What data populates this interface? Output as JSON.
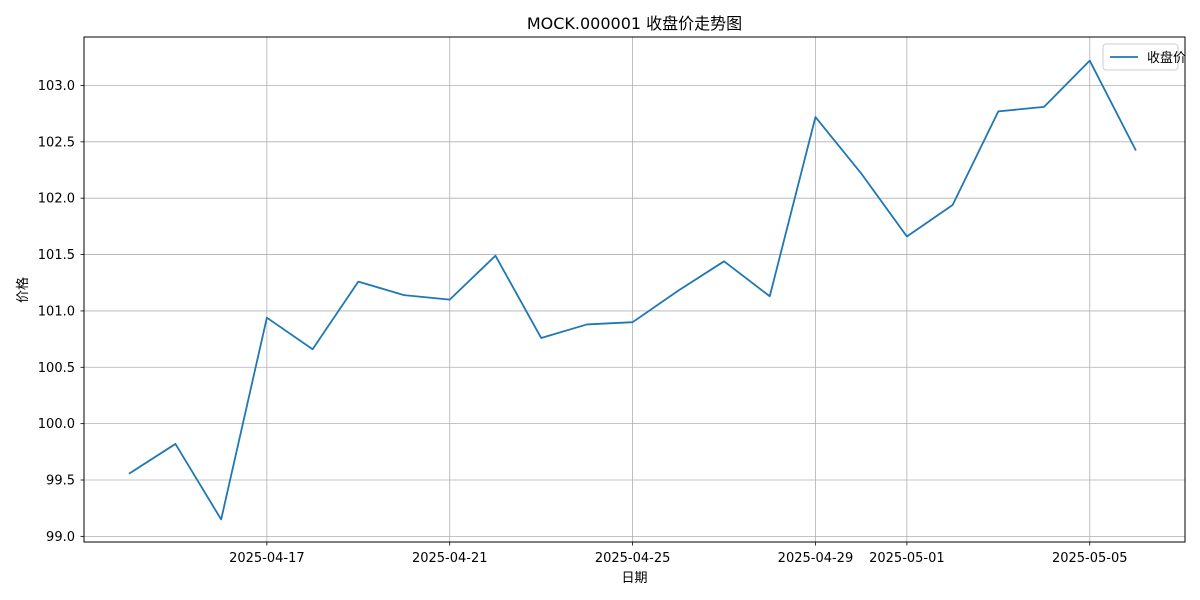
{
  "chart_data": {
    "type": "line",
    "title": "MOCK.000001 收盘价走势图",
    "xlabel": "日期",
    "ylabel": "价格",
    "x": [
      "2025-04-14",
      "2025-04-15",
      "2025-04-16",
      "2025-04-17",
      "2025-04-18",
      "2025-04-19",
      "2025-04-20",
      "2025-04-21",
      "2025-04-22",
      "2025-04-23",
      "2025-04-24",
      "2025-04-25",
      "2025-04-26",
      "2025-04-27",
      "2025-04-28",
      "2025-04-29",
      "2025-04-30",
      "2025-05-01",
      "2025-05-02",
      "2025-05-03",
      "2025-05-04",
      "2025-05-05",
      "2025-05-06"
    ],
    "series": [
      {
        "name": "收盘价",
        "color": "#1f77b4",
        "values": [
          99.56,
          99.82,
          99.15,
          100.94,
          100.66,
          101.26,
          101.14,
          101.1,
          101.49,
          100.76,
          100.88,
          100.9,
          101.18,
          101.44,
          101.13,
          102.72,
          102.22,
          101.66,
          101.94,
          102.77,
          102.81,
          103.22,
          102.43
        ]
      }
    ],
    "xticks": [
      "2025-04-17",
      "2025-04-21",
      "2025-04-25",
      "2025-04-29",
      "2025-05-01",
      "2025-05-05"
    ],
    "yticks": [
      99.0,
      99.5,
      100.0,
      100.5,
      101.0,
      101.5,
      102.0,
      102.5,
      103.0
    ],
    "ylim": [
      98.95,
      103.43
    ],
    "xlim": [
      "2025-04-13T00:00",
      "2025-05-07T02:00"
    ],
    "grid": true,
    "legend_position": "top-right"
  }
}
